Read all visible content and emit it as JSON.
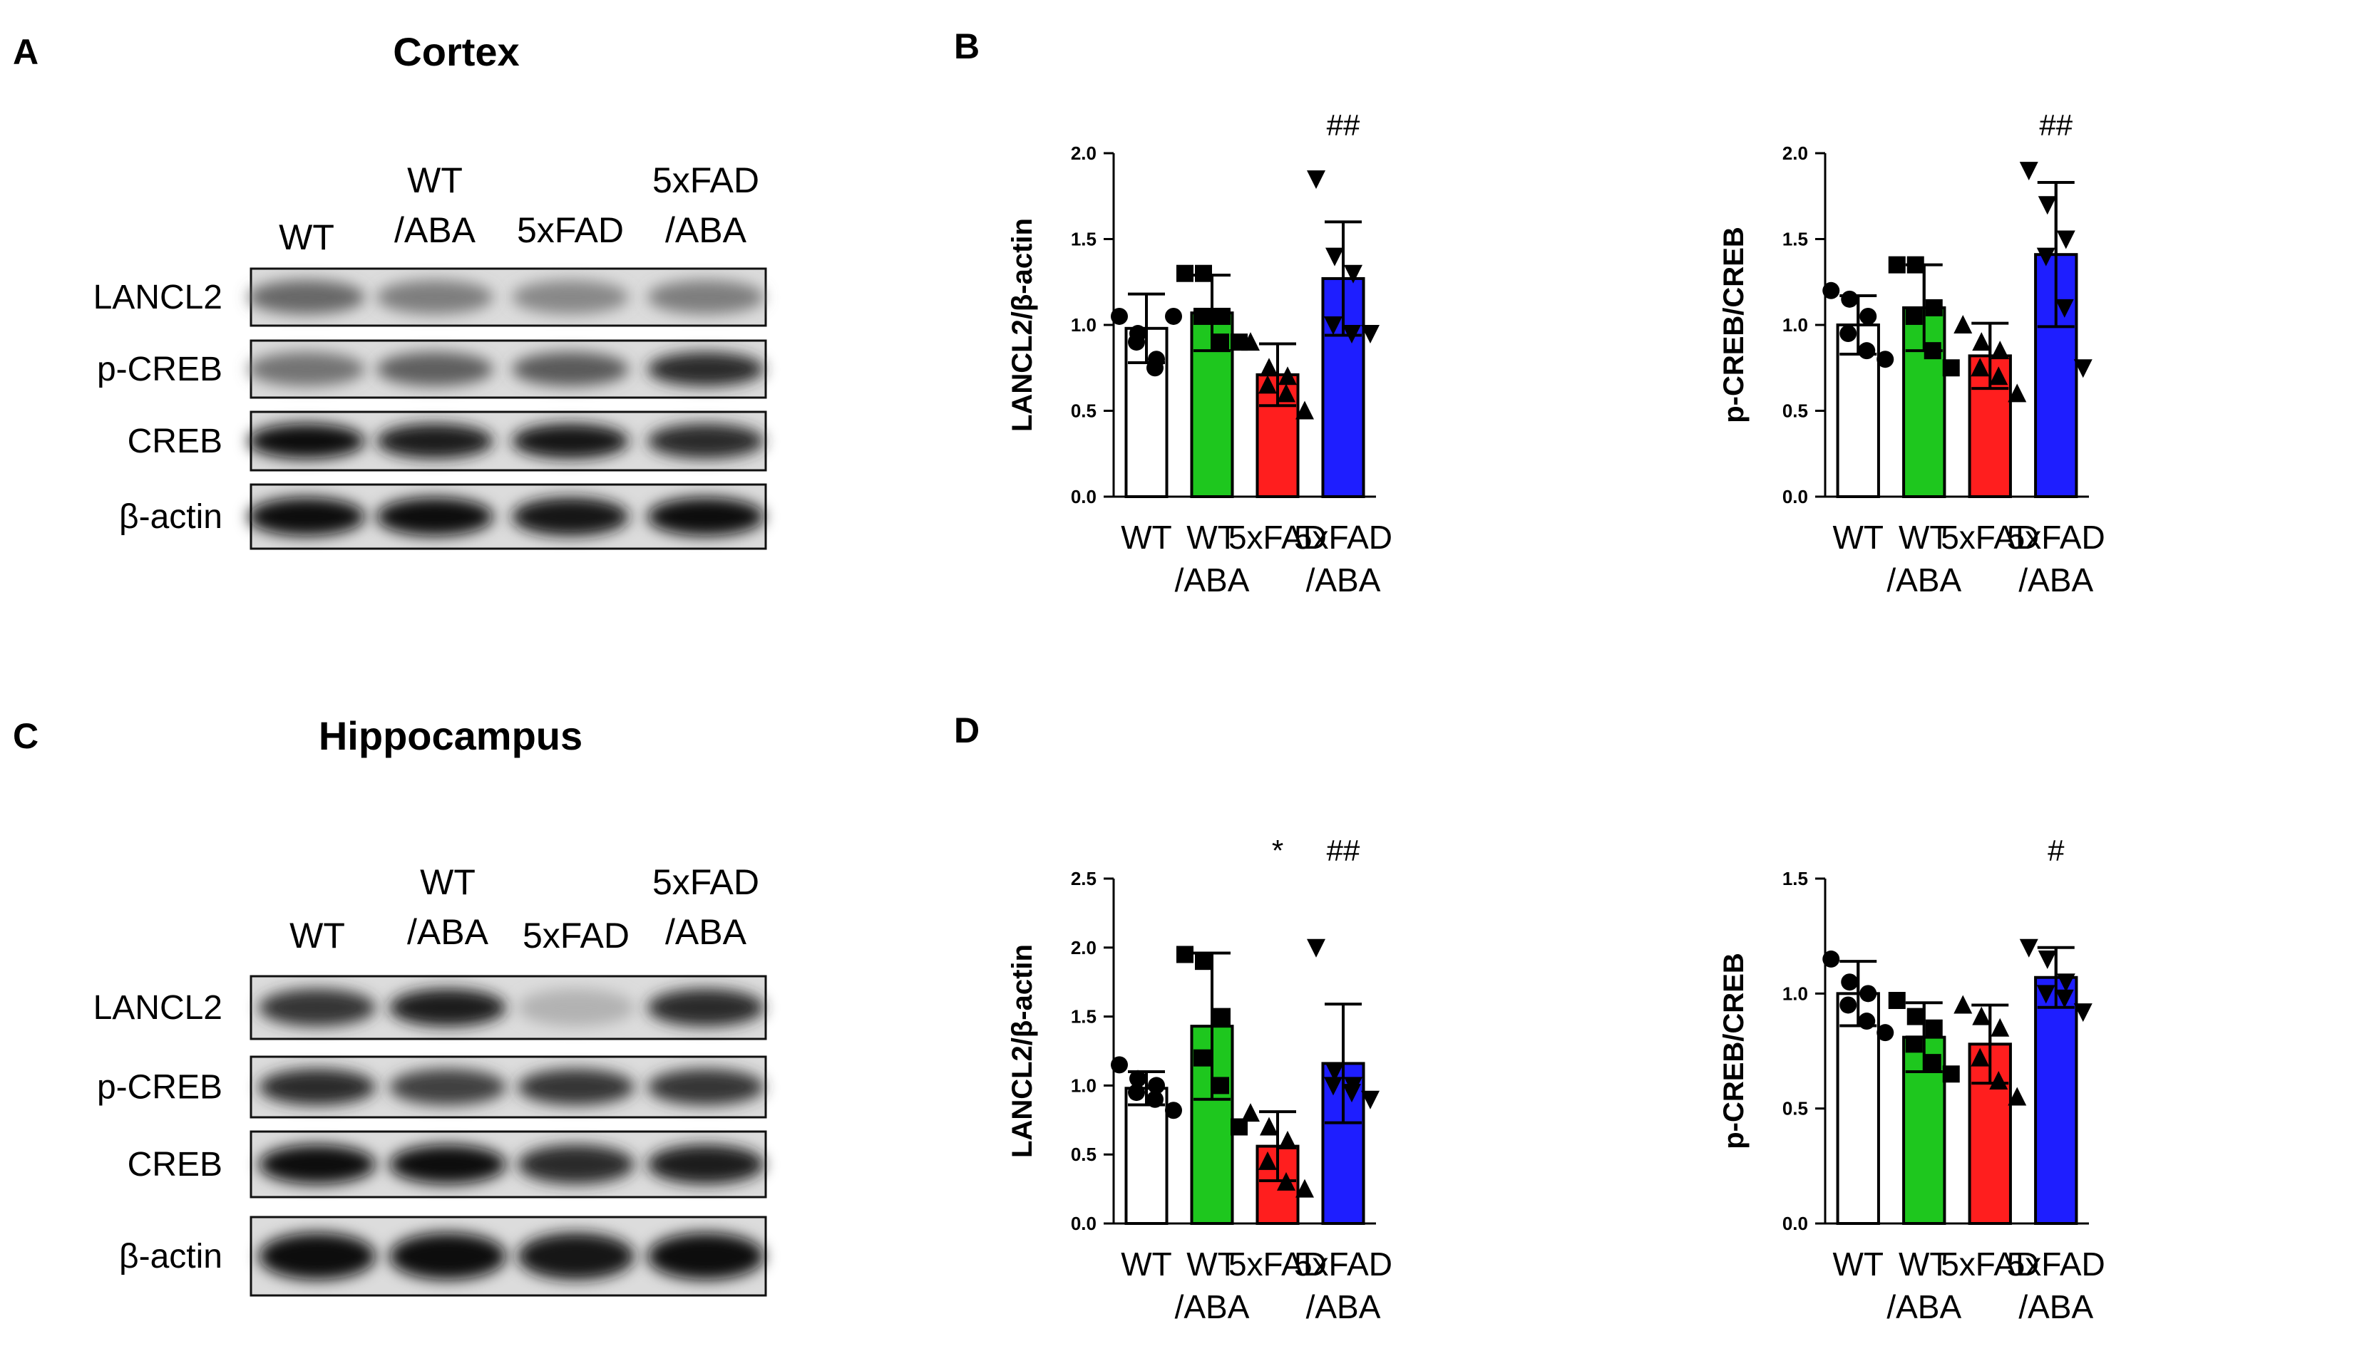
{
  "panels": {
    "A": {
      "letter": "A",
      "title": "Cortex"
    },
    "B": {
      "letter": "B"
    },
    "C": {
      "letter": "C",
      "title": "Hippocampus"
    },
    "D": {
      "letter": "D"
    }
  },
  "blots": [
    {
      "panel": "A",
      "lanes": [
        [
          "WT"
        ],
        [
          "WT",
          "/ABA"
        ],
        [
          "5xFAD"
        ],
        [
          "5xFAD",
          "/ABA"
        ]
      ],
      "rows": [
        {
          "label": "LANCL2",
          "intensities": [
            0.55,
            0.45,
            0.4,
            0.45
          ]
        },
        {
          "label": "p-CREB",
          "intensities": [
            0.5,
            0.6,
            0.62,
            0.85
          ]
        },
        {
          "label": "CREB",
          "intensities": [
            1.0,
            0.9,
            0.95,
            0.85
          ]
        },
        {
          "label": "β-actin",
          "intensities": [
            1.0,
            1.0,
            0.95,
            1.0
          ]
        }
      ]
    },
    {
      "panel": "C",
      "lanes": [
        [
          "WT"
        ],
        [
          "WT",
          "/ABA"
        ],
        [
          "5xFAD"
        ],
        [
          "5xFAD",
          "/ABA"
        ]
      ],
      "rows": [
        {
          "label": "LANCL2",
          "intensities": [
            0.8,
            0.9,
            0.2,
            0.85
          ]
        },
        {
          "label": "p-CREB",
          "intensities": [
            0.85,
            0.75,
            0.8,
            0.8
          ]
        },
        {
          "label": "CREB",
          "intensities": [
            1.0,
            1.0,
            0.85,
            0.9
          ]
        },
        {
          "label": "β-actin",
          "intensities": [
            1.0,
            1.0,
            0.95,
            1.0
          ]
        }
      ]
    }
  ],
  "chart_data": [
    {
      "panel": "B",
      "type": "bar",
      "categories": [
        [
          "WT"
        ],
        [
          "WT",
          "/ABA"
        ],
        [
          "5xFAD"
        ],
        [
          "5xFAD",
          "/ABA"
        ]
      ],
      "values": [
        0.98,
        1.07,
        0.71,
        1.27
      ],
      "sd": [
        0.2,
        0.22,
        0.18,
        0.33
      ],
      "colors": [
        "#ffffff",
        "#1ec71e",
        "#ff1e1e",
        "#1e1eff"
      ],
      "markers": [
        "circle",
        "square",
        "triangle",
        "triangle-down"
      ],
      "points": [
        [
          1.05,
          0.95,
          0.8,
          0.9,
          0.75,
          1.05
        ],
        [
          1.3,
          1.3,
          1.05,
          1.05,
          0.9,
          0.9
        ],
        [
          0.9,
          0.75,
          0.7,
          0.65,
          0.6,
          0.5
        ],
        [
          1.85,
          1.4,
          1.3,
          1.0,
          0.95,
          0.95
        ]
      ],
      "annotations": [
        "",
        "",
        "",
        "##"
      ],
      "ylabel": "LANCL2/β-actin",
      "ylim": [
        0,
        2.0
      ],
      "yticks": [
        "0.0",
        "0.5",
        "1.0",
        "1.5",
        "2.0"
      ]
    },
    {
      "panel": "B",
      "type": "bar",
      "categories": [
        [
          "WT"
        ],
        [
          "WT",
          "/ABA"
        ],
        [
          "5xFAD"
        ],
        [
          "5xFAD",
          "/ABA"
        ]
      ],
      "values": [
        1.0,
        1.1,
        0.82,
        1.41
      ],
      "sd": [
        0.17,
        0.25,
        0.19,
        0.42
      ],
      "colors": [
        "#ffffff",
        "#1ec71e",
        "#ff1e1e",
        "#1e1eff"
      ],
      "markers": [
        "circle",
        "square",
        "triangle",
        "triangle-down"
      ],
      "points": [
        [
          1.2,
          1.15,
          1.05,
          0.95,
          0.85,
          0.8
        ],
        [
          1.35,
          1.35,
          1.1,
          1.05,
          0.85,
          0.75
        ],
        [
          1.0,
          0.9,
          0.85,
          0.75,
          0.7,
          0.6
        ],
        [
          1.9,
          1.7,
          1.5,
          1.4,
          1.1,
          0.75
        ]
      ],
      "annotations": [
        "",
        "",
        "",
        "##"
      ],
      "ylabel": "p-CREB/CREB",
      "ylim": [
        0,
        2.0
      ],
      "yticks": [
        "0.0",
        "0.5",
        "1.0",
        "1.5",
        "2.0"
      ]
    },
    {
      "panel": "D",
      "type": "bar",
      "categories": [
        [
          "WT"
        ],
        [
          "WT",
          "/ABA"
        ],
        [
          "5xFAD"
        ],
        [
          "5xFAD",
          "/ABA"
        ]
      ],
      "values": [
        0.98,
        1.43,
        0.56,
        1.16
      ],
      "sd": [
        0.12,
        0.53,
        0.25,
        0.43
      ],
      "colors": [
        "#ffffff",
        "#1ec71e",
        "#ff1e1e",
        "#1e1eff"
      ],
      "markers": [
        "circle",
        "square",
        "triangle",
        "triangle-down"
      ],
      "points": [
        [
          1.15,
          1.05,
          1.0,
          0.95,
          0.9,
          0.82
        ],
        [
          1.95,
          1.9,
          1.5,
          1.2,
          1.0,
          0.7
        ],
        [
          0.8,
          0.7,
          0.6,
          0.45,
          0.3,
          0.25
        ],
        [
          2.0,
          1.1,
          1.0,
          1.0,
          0.95,
          0.9
        ]
      ],
      "annotations": [
        "",
        "",
        "*",
        "##"
      ],
      "ylabel": "LANCL2/β-actin",
      "ylim": [
        0,
        2.5
      ],
      "yticks": [
        "0.0",
        "0.5",
        "1.0",
        "1.5",
        "2.0",
        "2.5"
      ]
    },
    {
      "panel": "D",
      "type": "bar",
      "categories": [
        [
          "WT"
        ],
        [
          "WT",
          "/ABA"
        ],
        [
          "5xFAD"
        ],
        [
          "5xFAD",
          "/ABA"
        ]
      ],
      "values": [
        1.0,
        0.81,
        0.78,
        1.07
      ],
      "sd": [
        0.14,
        0.15,
        0.17,
        0.13
      ],
      "colors": [
        "#ffffff",
        "#1ec71e",
        "#ff1e1e",
        "#1e1eff"
      ],
      "markers": [
        "circle",
        "square",
        "triangle",
        "triangle-down"
      ],
      "points": [
        [
          1.15,
          1.05,
          1.0,
          0.95,
          0.88,
          0.83
        ],
        [
          0.97,
          0.9,
          0.85,
          0.78,
          0.7,
          0.65
        ],
        [
          0.95,
          0.9,
          0.85,
          0.72,
          0.62,
          0.55
        ],
        [
          1.2,
          1.15,
          1.05,
          1.0,
          0.98,
          0.92
        ]
      ],
      "annotations": [
        "",
        "",
        "",
        "#"
      ],
      "ylabel": "p-CREB/CREB",
      "ylim": [
        0,
        1.5
      ],
      "yticks": [
        "0.0",
        "0.5",
        "1.0",
        "1.5"
      ]
    }
  ]
}
